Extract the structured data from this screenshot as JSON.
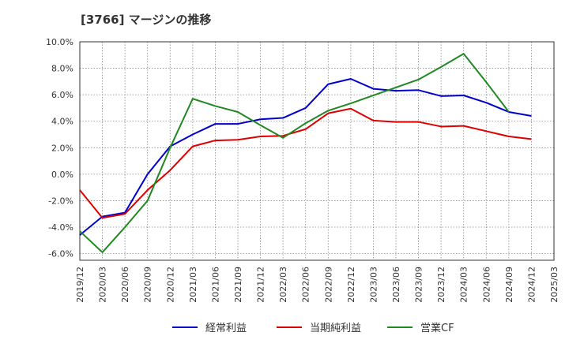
{
  "chart_data": {
    "type": "line",
    "title": "[3766]  マージンの推移",
    "x": [
      "2019/12",
      "2020/03",
      "2020/06",
      "2020/09",
      "2020/12",
      "2021/03",
      "2021/06",
      "2021/09",
      "2021/12",
      "2022/03",
      "2022/06",
      "2022/09",
      "2022/12",
      "2023/03",
      "2023/06",
      "2023/09",
      "2023/12",
      "2024/03",
      "2024/06",
      "2024/09",
      "2024/12",
      "2025/03"
    ],
    "y_ticks": [
      "10.0%",
      "8.0%",
      "6.0%",
      "4.0%",
      "2.0%",
      "0.0%",
      "-2.0%",
      "-4.0%",
      "-6.0%"
    ],
    "y_tick_values": [
      10,
      8,
      6,
      4,
      2,
      0,
      -2,
      -4,
      -6
    ],
    "ylim": [
      -6.5,
      10
    ],
    "grid": true,
    "legend_position": "bottom",
    "series": [
      {
        "name": "経常利益",
        "color": "#0000cc",
        "values": [
          -4.6,
          -3.2,
          -2.9,
          0.0,
          2.1,
          3.0,
          3.8,
          3.8,
          4.15,
          4.25,
          5.0,
          6.8,
          7.2,
          6.45,
          6.3,
          6.35,
          5.9,
          5.95,
          5.4,
          4.7,
          4.4,
          null
        ]
      },
      {
        "name": "当期純利益",
        "color": "#dd0000",
        "values": [
          -1.2,
          -3.3,
          -3.0,
          -1.2,
          0.3,
          2.1,
          2.55,
          2.6,
          2.85,
          2.9,
          3.4,
          4.6,
          4.95,
          4.05,
          3.95,
          3.95,
          3.6,
          3.65,
          3.25,
          2.85,
          2.65,
          null
        ]
      },
      {
        "name": "営業CF",
        "color": "#228822",
        "values": [
          -4.3,
          -5.9,
          -4.0,
          -2.0,
          2.0,
          5.7,
          5.15,
          4.7,
          3.7,
          2.75,
          3.85,
          4.8,
          5.35,
          5.95,
          6.55,
          7.15,
          8.1,
          9.1,
          6.95,
          4.7,
          null,
          null
        ]
      }
    ]
  }
}
